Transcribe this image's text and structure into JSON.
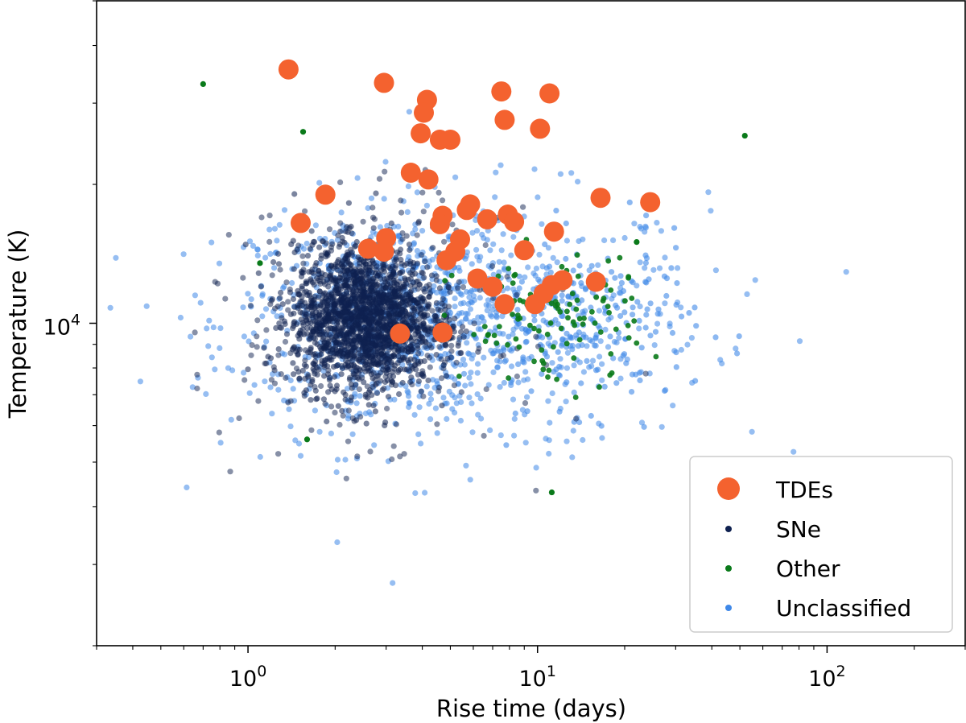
{
  "chart_data": {
    "type": "scatter",
    "title": "",
    "xlabel": "Rise time (days)",
    "ylabel": "Temperature (K)",
    "xscale": "log",
    "yscale": "log",
    "xlim": [
      0.3,
      300
    ],
    "ylim": [
      2000,
      50000
    ],
    "x_ticks": [
      {
        "value": 1,
        "base": "10",
        "exp": "0"
      },
      {
        "value": 10,
        "base": "10",
        "exp": "1"
      },
      {
        "value": 100,
        "base": "10",
        "exp": "2"
      }
    ],
    "y_ticks": [
      {
        "value": 10000,
        "base": "10",
        "exp": "4"
      }
    ],
    "legend_position": "lower-right",
    "series": [
      {
        "name": "TDEs",
        "color": "#f4622f",
        "marker": "large-circle",
        "points": [
          [
            1.38,
            35500
          ],
          [
            2.95,
            33200
          ],
          [
            4.15,
            30500
          ],
          [
            4.05,
            28600
          ],
          [
            3.95,
            25800
          ],
          [
            4.6,
            25000
          ],
          [
            5.0,
            25000
          ],
          [
            7.5,
            31800
          ],
          [
            7.7,
            27600
          ],
          [
            10.2,
            26400
          ],
          [
            11.0,
            31500
          ],
          [
            3.65,
            21200
          ],
          [
            4.2,
            20500
          ],
          [
            1.85,
            19000
          ],
          [
            1.52,
            16500
          ],
          [
            4.7,
            17100
          ],
          [
            4.6,
            16400
          ],
          [
            5.7,
            17600
          ],
          [
            5.85,
            18100
          ],
          [
            6.7,
            16800
          ],
          [
            7.9,
            17200
          ],
          [
            8.3,
            16600
          ],
          [
            16.5,
            18700
          ],
          [
            24.5,
            18300
          ],
          [
            11.4,
            15800
          ],
          [
            3.0,
            15300
          ],
          [
            2.6,
            14500
          ],
          [
            2.95,
            14300
          ],
          [
            5.4,
            15200
          ],
          [
            5.2,
            14300
          ],
          [
            4.85,
            13700
          ],
          [
            9.0,
            14400
          ],
          [
            6.2,
            12500
          ],
          [
            7.0,
            12000
          ],
          [
            7.7,
            11000
          ],
          [
            9.8,
            11000
          ],
          [
            10.5,
            11600
          ],
          [
            11.2,
            12100
          ],
          [
            12.2,
            12400
          ],
          [
            15.9,
            12300
          ],
          [
            3.35,
            9500
          ],
          [
            4.7,
            9550
          ]
        ]
      },
      {
        "name": "SNe",
        "color": "#0f2150",
        "marker": "small-dot"
      },
      {
        "name": "Other",
        "color": "#0a7a1a",
        "marker": "small-dot"
      },
      {
        "name": "Unclassified",
        "color": "#3f88e8",
        "marker": "small-dot"
      }
    ]
  }
}
